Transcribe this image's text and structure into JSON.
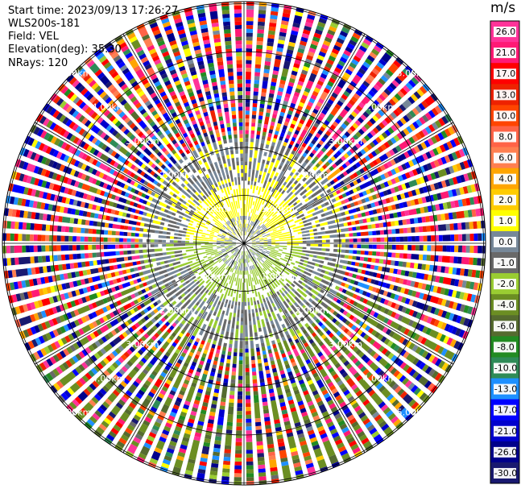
{
  "header": {
    "start_time": "Start time: 2023/09/13 17:26:27",
    "instrument": "WLS200s-181",
    "field": "Field: VEL",
    "elevation": "Elevation(deg): 35.30",
    "nrays": "NRays: 120"
  },
  "colorbar": {
    "unit": "m/s",
    "ticks": [
      "26.0",
      "21.0",
      "17.0",
      "13.0",
      "10.0",
      "8.0",
      "6.0",
      "4.0",
      "2.0",
      "1.0",
      "0.0",
      "-1.0",
      "-2.0",
      "-4.0",
      "-6.0",
      "-8.0",
      "-10.0",
      "-13.0",
      "-17.0",
      "-21.0",
      "-26.0",
      "-30.0"
    ],
    "bins": [
      {
        "min": 26,
        "max": 30,
        "color": "#ff3399"
      },
      {
        "min": 21,
        "max": 26,
        "color": "#ff1a75"
      },
      {
        "min": 17,
        "max": 21,
        "color": "#ff0000"
      },
      {
        "min": 13,
        "max": 17,
        "color": "#ee2200"
      },
      {
        "min": 10,
        "max": 13,
        "color": "#ff4500"
      },
      {
        "min": 8,
        "max": 10,
        "color": "#ff6347"
      },
      {
        "min": 6,
        "max": 8,
        "color": "#ff7f50"
      },
      {
        "min": 4,
        "max": 6,
        "color": "#ffa500"
      },
      {
        "min": 2,
        "max": 4,
        "color": "#ffcc00"
      },
      {
        "min": 1,
        "max": 2,
        "color": "#ffff00"
      },
      {
        "min": 0,
        "max": 1,
        "color": "#778899"
      },
      {
        "min": -1,
        "max": 0,
        "color": "#696969"
      },
      {
        "min": -2,
        "max": -1,
        "color": "#9acd32"
      },
      {
        "min": -4,
        "max": -2,
        "color": "#6b8e23"
      },
      {
        "min": -6,
        "max": -4,
        "color": "#556b2f"
      },
      {
        "min": -8,
        "max": -6,
        "color": "#228b22"
      },
      {
        "min": -10,
        "max": -8,
        "color": "#2e8b57"
      },
      {
        "min": -13,
        "max": -10,
        "color": "#1e90ff"
      },
      {
        "min": -17,
        "max": -13,
        "color": "#0000ff"
      },
      {
        "min": -21,
        "max": -17,
        "color": "#0000cd"
      },
      {
        "min": -26,
        "max": -21,
        "color": "#00008b"
      },
      {
        "min": -30,
        "max": -26,
        "color": "#191970"
      }
    ]
  },
  "chart_data": {
    "type": "heatmap",
    "projection": "polar-ppi",
    "field": "VEL",
    "units": "m/s",
    "nrays": 120,
    "value_range": [
      -30,
      30
    ],
    "range_rings": [
      {
        "label": "1.00km"
      },
      {
        "label": "2.00km"
      },
      {
        "label": "3.00km"
      },
      {
        "label": "4.00km"
      },
      {
        "label": "5.00km"
      }
    ],
    "grid": true
  }
}
